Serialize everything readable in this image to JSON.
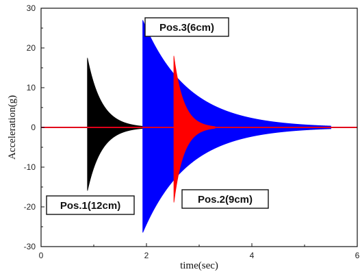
{
  "chart_data": {
    "type": "line",
    "title": "",
    "xlabel": "time(sec)",
    "ylabel": "Acceleration(g)",
    "xlim": [
      0,
      6
    ],
    "ylim": [
      -30,
      30
    ],
    "xticks": [
      "0",
      "2",
      "4",
      "6"
    ],
    "yticks": [
      "30",
      "20",
      "10",
      "0",
      "-10",
      "-20",
      "-30"
    ],
    "grid": false,
    "series": [
      {
        "color": "#000000",
        "impact_time": 0.88,
        "peak_pos": 17.5,
        "peak_neg": -16.0,
        "decay_end": 2.0
      },
      {
        "color": "#ff0000",
        "impact_time": 2.52,
        "peak_pos": 18.0,
        "peak_neg": -19.0,
        "decay_end": 3.3
      },
      {
        "color": "#0000ff",
        "impact_time": 1.93,
        "peak_pos": 27.0,
        "peak_neg": -26.5,
        "decay_end": 5.5
      }
    ],
    "annotations": [
      {
        "text": "Pos.1(12cm)",
        "series_index": 0
      },
      {
        "text": "Pos.2(9cm)",
        "series_index": 1
      },
      {
        "text": "Pos.3(6cm)",
        "series_index": 2
      }
    ]
  }
}
